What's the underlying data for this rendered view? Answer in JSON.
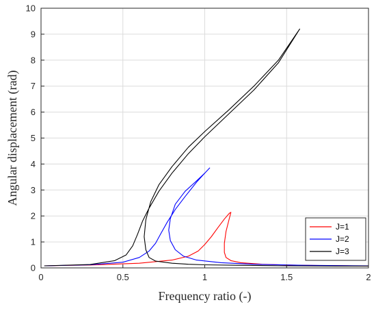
{
  "chart_data": {
    "type": "line",
    "title": "",
    "xlabel": "Frequency ratio (-)",
    "ylabel": "Angular displacement (rad)",
    "xlim": [
      0,
      2
    ],
    "ylim": [
      0,
      10
    ],
    "xticks": [
      "0",
      "0.5",
      "1",
      "1.5",
      "2"
    ],
    "yticks": [
      "0",
      "1",
      "2",
      "3",
      "4",
      "5",
      "6",
      "7",
      "8",
      "9",
      "10"
    ],
    "grid": true,
    "legend_position": "bottom-right",
    "series": [
      {
        "name": "J=1",
        "color": "#ff0000",
        "x": [
          0.02,
          0.3,
          0.6,
          0.8,
          0.9,
          0.96,
          1.0,
          1.04,
          1.08,
          1.12,
          1.15,
          1.16,
          1.15,
          1.13,
          1.12,
          1.12,
          1.13,
          1.16,
          1.22,
          1.35,
          1.5,
          1.7,
          1.9,
          2.0
        ],
        "y": [
          0.08,
          0.11,
          0.18,
          0.3,
          0.45,
          0.65,
          0.9,
          1.2,
          1.55,
          1.88,
          2.1,
          2.14,
          1.9,
          1.4,
          0.95,
          0.6,
          0.4,
          0.28,
          0.2,
          0.14,
          0.11,
          0.09,
          0.08,
          0.075
        ]
      },
      {
        "name": "J=2",
        "color": "#0000ff",
        "x": [
          0.02,
          0.3,
          0.5,
          0.6,
          0.66,
          0.7,
          0.73,
          0.77,
          0.82,
          0.88,
          0.95,
          1.0,
          1.03,
          1.0,
          0.95,
          0.88,
          0.82,
          0.79,
          0.78,
          0.79,
          0.82,
          0.87,
          0.95,
          1.1,
          1.3,
          1.6,
          2.0
        ],
        "y": [
          0.08,
          0.12,
          0.22,
          0.4,
          0.65,
          0.95,
          1.3,
          1.75,
          2.25,
          2.75,
          3.3,
          3.65,
          3.85,
          3.65,
          3.35,
          2.95,
          2.45,
          1.9,
          1.45,
          1.05,
          0.7,
          0.45,
          0.3,
          0.2,
          0.14,
          0.1,
          0.08
        ]
      },
      {
        "name": "J=3",
        "color": "#000000",
        "x": [
          0.02,
          0.3,
          0.45,
          0.52,
          0.56,
          0.59,
          0.62,
          0.66,
          0.72,
          0.8,
          0.9,
          1.0,
          1.15,
          1.3,
          1.45,
          1.58,
          1.45,
          1.3,
          1.15,
          1.0,
          0.9,
          0.8,
          0.72,
          0.67,
          0.64,
          0.63,
          0.64,
          0.66,
          0.7,
          0.8,
          0.9,
          1.0,
          1.2,
          1.5,
          1.8,
          2.0
        ],
        "y": [
          0.08,
          0.13,
          0.28,
          0.5,
          0.85,
          1.3,
          1.8,
          2.3,
          2.95,
          3.65,
          4.4,
          5.05,
          5.95,
          6.85,
          7.9,
          9.2,
          8.0,
          7.0,
          6.1,
          5.25,
          4.65,
          3.9,
          3.2,
          2.55,
          1.85,
          1.2,
          0.7,
          0.4,
          0.26,
          0.18,
          0.14,
          0.12,
          0.1,
          0.08,
          0.07,
          0.07
        ]
      }
    ]
  }
}
